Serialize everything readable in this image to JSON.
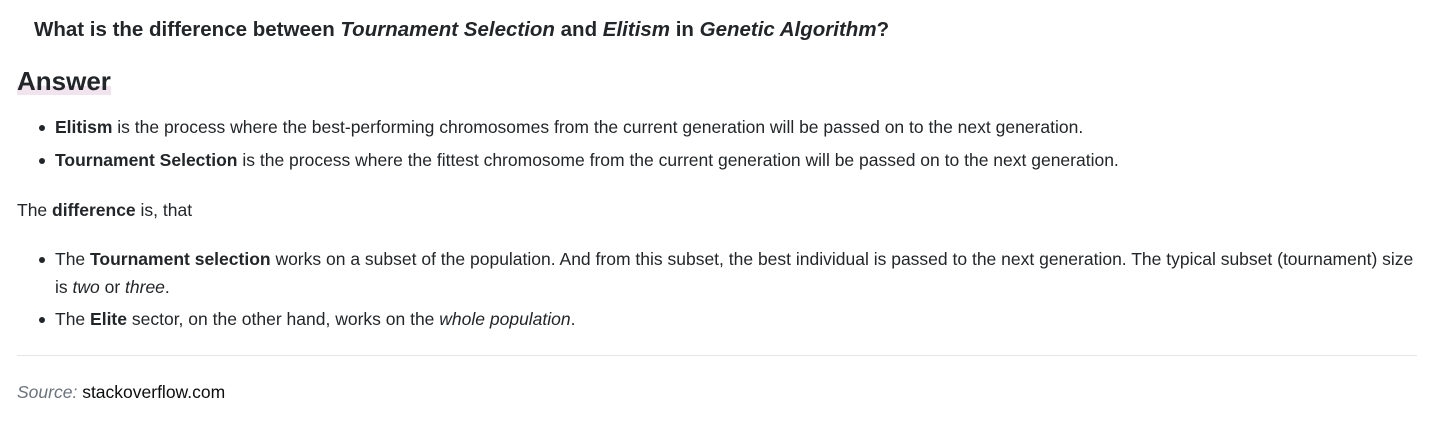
{
  "question": {
    "p1": "What is the difference between ",
    "em1": "Tournament Selection",
    "p2": " and ",
    "em2": "Elitism",
    "p3": " in ",
    "em3": "Genetic Algorithm",
    "p4": "?"
  },
  "answer_heading": "Answer",
  "definitions": [
    {
      "term": "Elitism",
      "text": " is the process where the best-performing chromosomes from the current generation will be passed on to the next generation."
    },
    {
      "term": "Tournament Selection",
      "text": " is the process where the fittest chromosome from the current generation will be passed on to the next generation."
    }
  ],
  "difference_intro": {
    "pre": "The ",
    "bold": "difference",
    "post": " is, that"
  },
  "differences": [
    {
      "pre": "The ",
      "bold": "Tournament selection",
      "mid": " works on a subset of the population. And from this subset, the best individual is passed to the next generation. The typical subset (tournament) size is ",
      "em1": "two",
      "or": " or ",
      "em2": "three",
      "end": "."
    },
    {
      "pre": "The ",
      "bold": "Elite",
      "mid": " sector, on the other hand, works on the ",
      "em": "whole population",
      "end": "."
    }
  ],
  "source": {
    "label": "Source:",
    "link": "stackoverflow.com"
  }
}
